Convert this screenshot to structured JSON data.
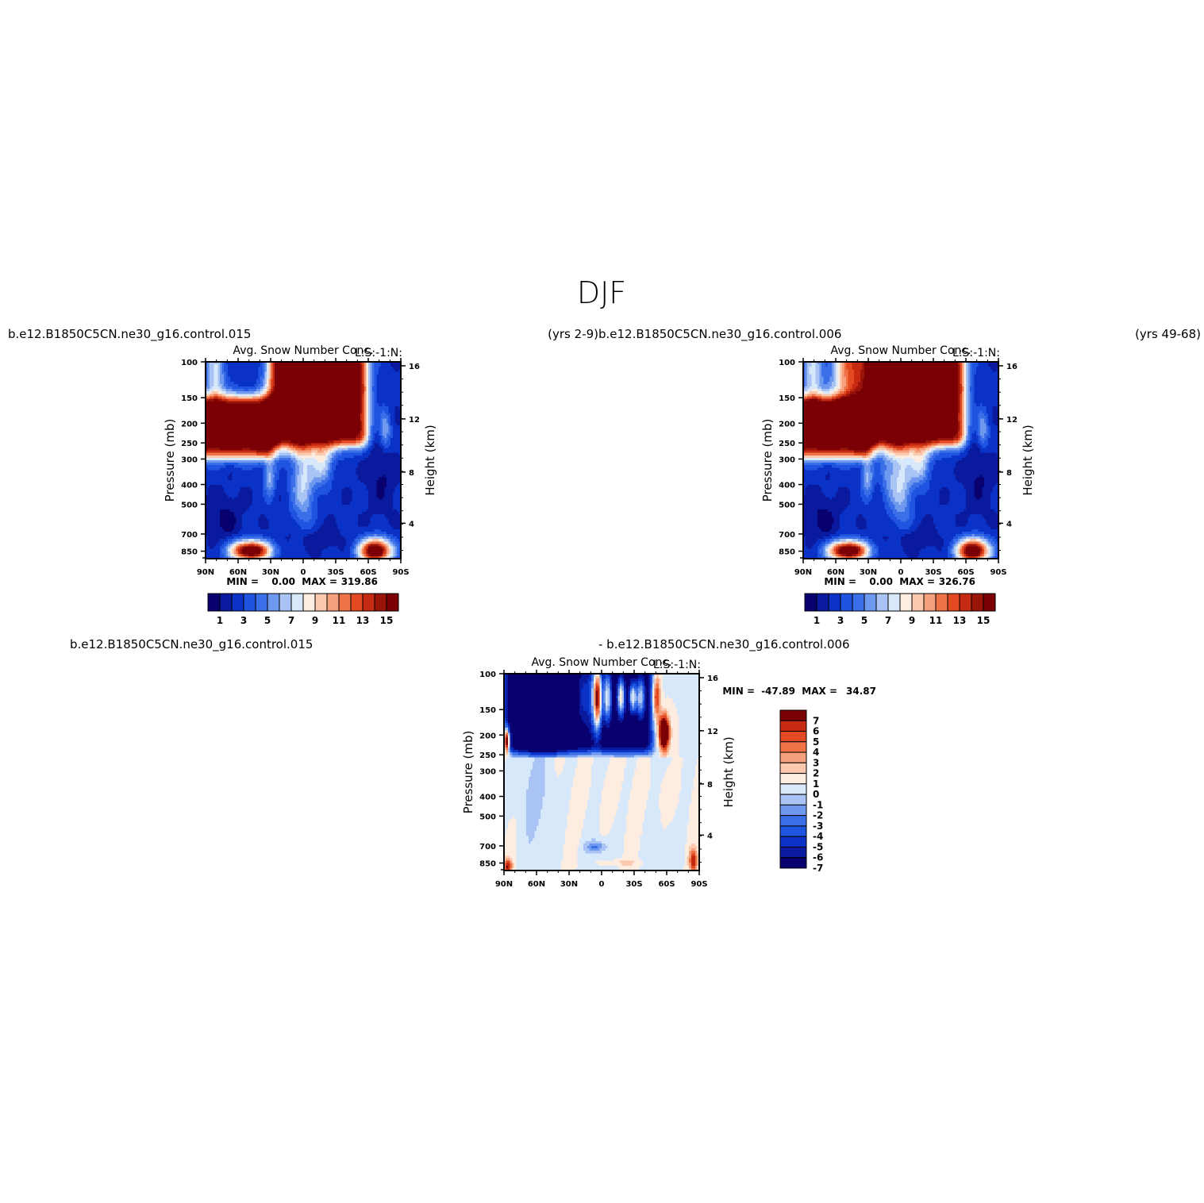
{
  "figure": {
    "title": "DJF"
  },
  "palette": {
    "cb16": [
      "#08006e",
      "#0a1a9e",
      "#0b32c6",
      "#1f54e0",
      "#3a6fe8",
      "#6f98ef",
      "#a9c3f4",
      "#d8e8fb",
      "#fdece0",
      "#fbc9ad",
      "#f6a07e",
      "#f07348",
      "#e34a21",
      "#c62a10",
      "#9a140a",
      "#7a0006"
    ],
    "diff15": [
      "#08006e",
      "#0a1a9e",
      "#0b32c6",
      "#1f54e0",
      "#3a6fe8",
      "#6f98ef",
      "#a9c3f4",
      "#d8e8fb",
      "#fdece0",
      "#fbc9ad",
      "#f6a07e",
      "#f07348",
      "#e34a21",
      "#c62a10",
      "#7a0006"
    ]
  },
  "chart_data": [
    {
      "type": "heatmap",
      "panel": "top-left",
      "left_title": "b.e12.B1850C5CN.ne30_g16.control.015",
      "right_title": "(yrs 2-9)",
      "center_string": "Avg. Snow Number Conc.",
      "right_string": "L:S:-1:N:",
      "xlabel": "",
      "ylabel": "Pressure (mb)",
      "ylabel_right": "Height (km)",
      "x_ticks": [
        "90N",
        "60N",
        "30N",
        "0",
        "30S",
        "60S",
        "90S"
      ],
      "y_ticks": [
        "100",
        "150",
        "200",
        "250",
        "300",
        "400",
        "500",
        "700",
        "850"
      ],
      "y_right_ticks": [
        "16",
        "12",
        "8",
        "4"
      ],
      "min_label": "MIN =",
      "min_value": "0.00",
      "max_label": "MAX =",
      "max_value": "319.86",
      "colorbar": {
        "orientation": "horizontal",
        "levels": [
          1,
          2,
          3,
          4,
          5,
          6,
          7,
          8,
          9,
          10,
          11,
          12,
          13,
          14,
          15
        ],
        "tick_labels": [
          "1",
          "3",
          "5",
          "7",
          "9",
          "11",
          "13",
          "15"
        ]
      }
    },
    {
      "type": "heatmap",
      "panel": "top-right",
      "left_title": "b.e12.B1850C5CN.ne30_g16.control.006",
      "right_title": "(yrs 49-68)",
      "center_string": "Avg. Snow Number Conc.",
      "right_string": "L:S:-1:N:",
      "xlabel": "",
      "ylabel": "Pressure (mb)",
      "ylabel_right": "Height (km)",
      "x_ticks": [
        "90N",
        "60N",
        "30N",
        "0",
        "30S",
        "60S",
        "90S"
      ],
      "y_ticks": [
        "100",
        "150",
        "200",
        "250",
        "300",
        "400",
        "500",
        "700",
        "850"
      ],
      "y_right_ticks": [
        "16",
        "12",
        "8",
        "4"
      ],
      "min_label": "MIN =",
      "min_value": "0.00",
      "max_label": "MAX =",
      "max_value": "326.76",
      "colorbar": {
        "orientation": "horizontal",
        "levels": [
          1,
          2,
          3,
          4,
          5,
          6,
          7,
          8,
          9,
          10,
          11,
          12,
          13,
          14,
          15
        ],
        "tick_labels": [
          "1",
          "3",
          "5",
          "7",
          "9",
          "11",
          "13",
          "15"
        ]
      }
    },
    {
      "type": "heatmap",
      "panel": "bottom-center",
      "left_title": "b.e12.B1850C5CN.ne30_g16.control.015",
      "right_title": "- b.e12.B1850C5CN.ne30_g16.control.006",
      "center_string": "Avg. Snow Number Conc.",
      "right_string": "L:S:-1:N:",
      "xlabel": "",
      "ylabel": "Pressure (mb)",
      "ylabel_right": "Height (km)",
      "x_ticks": [
        "90N",
        "60N",
        "30N",
        "0",
        "30S",
        "60S",
        "90S"
      ],
      "y_ticks": [
        "100",
        "150",
        "200",
        "250",
        "300",
        "400",
        "500",
        "700",
        "850"
      ],
      "y_right_ticks": [
        "16",
        "12",
        "8",
        "4"
      ],
      "min_label": "MIN =",
      "min_value": "-47.89",
      "max_label": "MAX =",
      "max_value": "34.87",
      "colorbar": {
        "orientation": "vertical",
        "levels": [
          -7,
          -6,
          -5,
          -4,
          -3,
          -2,
          -1,
          0,
          1,
          2,
          3,
          4,
          5,
          6,
          7
        ],
        "tick_labels": [
          "7",
          "6",
          "5",
          "4",
          "3",
          "2",
          "1",
          "0",
          "-1",
          "-2",
          "-3",
          "-4",
          "-5",
          "-6",
          "-7"
        ]
      }
    }
  ]
}
